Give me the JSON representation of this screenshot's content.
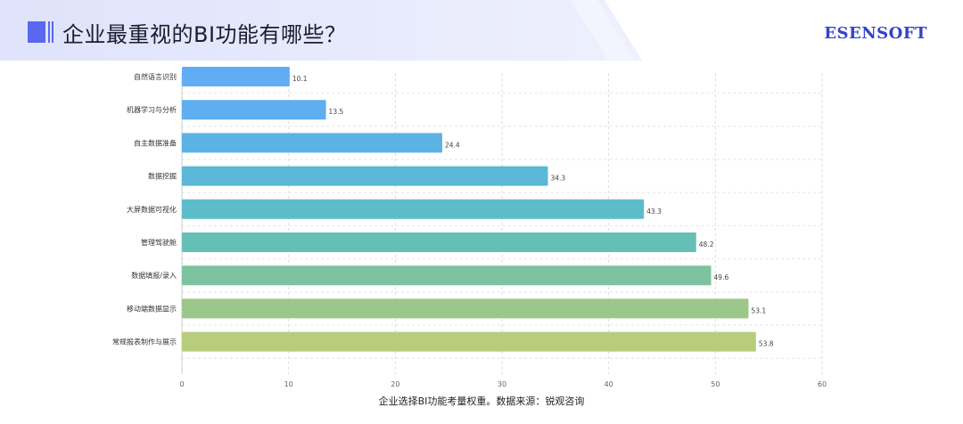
{
  "header": {
    "title": "企业最重视的BI功能有哪些？",
    "brand": "ESENSOFT",
    "accent_color": "#5b67f0",
    "band_color": "#e4e7fb"
  },
  "caption": "企业选择BI功能考量权重。数据来源：锐观咨询",
  "chart_data": {
    "type": "bar",
    "orientation": "horizontal",
    "categories": [
      "自然语言识别",
      "机器学习与分析",
      "自主数据准备",
      "数据挖掘",
      "大屏数据可视化",
      "管理驾驶舱",
      "数据填报/录入",
      "移动端数据显示",
      "常规报表制作与展示"
    ],
    "values": [
      10.1,
      13.5,
      24.4,
      34.3,
      43.3,
      48.2,
      49.6,
      53.1,
      53.8
    ],
    "value_labels": [
      "10.1",
      "13.5",
      "24.4",
      "34.3",
      "43.3",
      "48.2",
      "49.6",
      "53.1",
      "53.8"
    ],
    "colors": [
      "#60acf5",
      "#5eaef0",
      "#5bb2e4",
      "#5bb7d7",
      "#5dbcca",
      "#66bfb5",
      "#7dc39f",
      "#9bc88a",
      "#b7cd7c"
    ],
    "xticks": [
      "0",
      "10",
      "20",
      "30",
      "40",
      "50",
      "60"
    ],
    "xlim": [
      0,
      60
    ],
    "grid": true,
    "grid_style": "dashed",
    "title": "",
    "xlabel": "",
    "ylabel": ""
  }
}
